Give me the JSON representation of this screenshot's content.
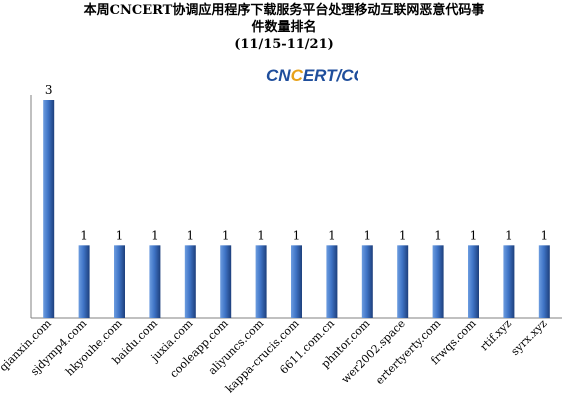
{
  "title_lines": [
    "本周CNCERT协调应用程序下载服务平台处理移动互联网恶意代码事",
    "件数量排名",
    "(11/15-11/21)"
  ],
  "logo": {
    "text_before": "CN",
    "text_accent": "C",
    "text_after": "ERT/CC",
    "color": "#1f4e9c",
    "accent": "#e8a21a"
  },
  "colors": {
    "bar_light": "#6d9de0",
    "bar_mid": "#3f74c6",
    "bar_dark": "#1d3f7c",
    "axis": "#808080"
  },
  "chart_data": {
    "type": "bar",
    "categories": [
      "qianxin.com",
      "sjdymp4.com",
      "hkyouhe.com",
      "baidu.com",
      "juxia.com",
      "cooleapp.com",
      "aliyuncs.com",
      "kappa-crucis.com",
      "6611.com.cn",
      "phntor.com",
      "wer2002.space",
      "ertertyerty.com",
      "frwqs.com",
      "rtif.xyz",
      "syrx.xyz"
    ],
    "values": [
      3,
      1,
      1,
      1,
      1,
      1,
      1,
      1,
      1,
      1,
      1,
      1,
      1,
      1,
      1
    ],
    "value_labels": [
      "3",
      "1",
      "1",
      "1",
      "1",
      "1",
      "1",
      "1",
      "1",
      "1",
      "1",
      "1",
      "1",
      "1",
      "1"
    ]
  }
}
